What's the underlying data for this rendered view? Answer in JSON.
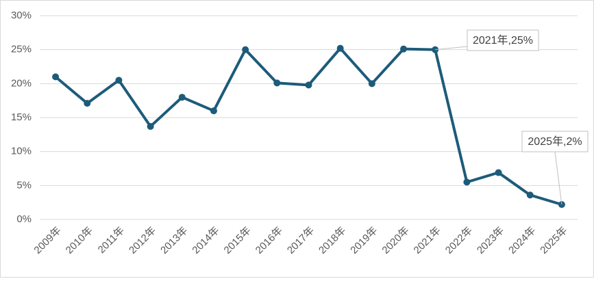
{
  "chart_data": {
    "type": "line",
    "categories": [
      "2009年",
      "2010年",
      "2011年",
      "2012年",
      "2013年",
      "2014年",
      "2015年",
      "2016年",
      "2017年",
      "2018年",
      "2019年",
      "2020年",
      "2021年",
      "2022年",
      "2023年",
      "2024年",
      "2025年"
    ],
    "series": [
      {
        "color": "#1d5b7a",
        "values": [
          21,
          17.1,
          20.5,
          13.7,
          18,
          16,
          25,
          20.1,
          19.8,
          25.2,
          20,
          25.1,
          25,
          5.5,
          6.9,
          3.6,
          2.2
        ]
      }
    ],
    "ylim": [
      0,
      30
    ],
    "yticks": [
      {
        "value": 0,
        "label": "0%"
      },
      {
        "value": 5,
        "label": "5%"
      },
      {
        "value": 10,
        "label": "10%"
      },
      {
        "value": 15,
        "label": "15%"
      },
      {
        "value": 20,
        "label": "20%"
      },
      {
        "value": 25,
        "label": "25%"
      },
      {
        "value": 30,
        "label": "30%"
      }
    ],
    "grid": true,
    "annotations": [
      {
        "text": "2021年,25%"
      },
      {
        "text": "2025年,2%"
      }
    ]
  }
}
